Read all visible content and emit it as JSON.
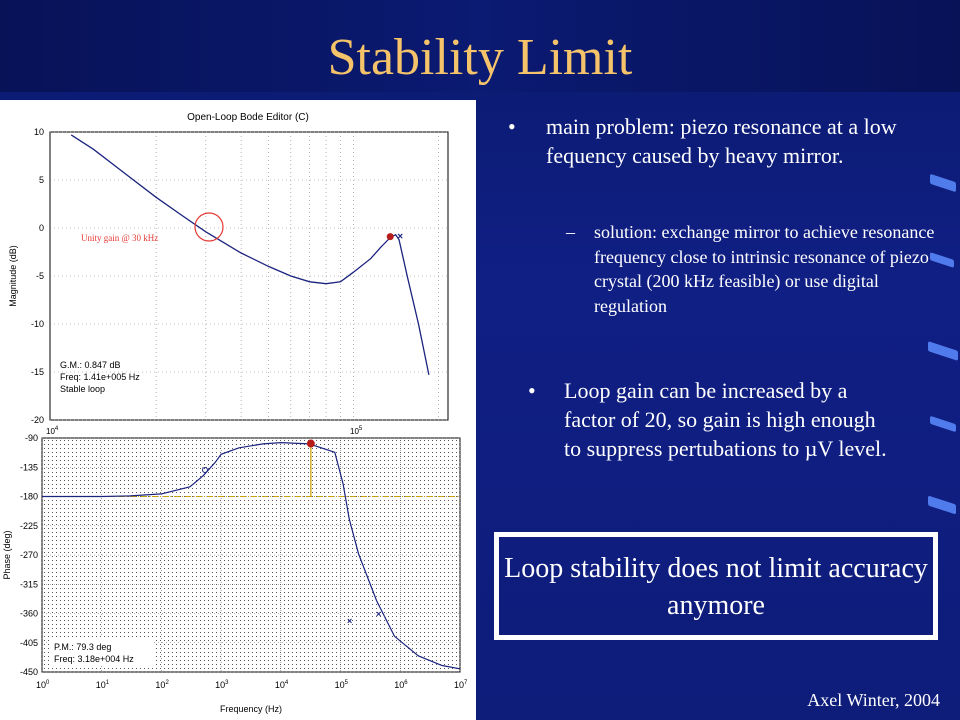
{
  "slide": {
    "title": "Stability Limit",
    "author": "Axel Winter, 2004",
    "bullets": {
      "main": "main problem: piezo resonance at a low fequency caused by heavy mirror.",
      "sub": "solution: exchange mirror to achieve resonance frequency close to intrinsic resonance of piezo crystal (200 kHz feasible) or use digital regulation",
      "loop": "Loop gain can be increased by a factor of 20, so gain is high enough to suppress pertubations to µV level."
    },
    "conclusion": "Loop stability does not limit accuracy anymore",
    "colors": {
      "background": "#0e1c7a",
      "title": "#f5c46a",
      "accent": "#5a8cff"
    }
  },
  "bode": {
    "window_title": "Open-Loop Bode Editor (C)",
    "magnitude": {
      "ylabel": "Magnitude (dB)",
      "y_ticks": [
        "10",
        "5",
        "0",
        "-5",
        "-10",
        "-15",
        "-20"
      ],
      "ylim": [
        -20,
        10
      ],
      "x_ticks": [
        "10",
        "10"
      ],
      "x_exps": [
        "4",
        "5"
      ],
      "annotation": "Unity gain @ 30 kHz",
      "info": [
        "G.M.: 0.847 dB",
        "Freq: 1.41e+005 Hz",
        "Stable loop"
      ],
      "curve_db": [
        [
          10000,
          9.7
        ],
        [
          12000,
          8.2
        ],
        [
          15000,
          6.0
        ],
        [
          20000,
          3.2
        ],
        [
          25000,
          1.2
        ],
        [
          30000,
          -0.4
        ],
        [
          40000,
          -2.6
        ],
        [
          50000,
          -4.0
        ],
        [
          60000,
          -5.0
        ],
        [
          70000,
          -5.6
        ],
        [
          80000,
          -5.8
        ],
        [
          90000,
          -5.6
        ],
        [
          100000,
          -4.6
        ],
        [
          115000,
          -3.2
        ],
        [
          125000,
          -2.0
        ],
        [
          135000,
          -1.0
        ],
        [
          141000,
          -0.7
        ],
        [
          145000,
          -1.2
        ],
        [
          155000,
          -5.0
        ],
        [
          170000,
          -10.0
        ],
        [
          185000,
          -15.3
        ]
      ]
    },
    "phase": {
      "ylabel": "Phase (deg)",
      "xlabel": "Frequency (Hz)",
      "y_ticks": [
        "-90",
        "-135",
        "-180",
        "-225",
        "-270",
        "-315",
        "-360",
        "-405",
        "-450"
      ],
      "ylim": [
        -450,
        -90
      ],
      "x_ticks": [
        "10",
        "10",
        "10",
        "10",
        "10",
        "10",
        "10",
        "10"
      ],
      "x_exps": [
        "0",
        "1",
        "2",
        "3",
        "4",
        "5",
        "6",
        "7"
      ],
      "info": [
        "P.M.: 79.3 deg",
        "Freq: 3.18e+004 Hz"
      ],
      "curve_deg": [
        [
          1,
          -180
        ],
        [
          10,
          -180
        ],
        [
          30,
          -179
        ],
        [
          100,
          -176
        ],
        [
          300,
          -165
        ],
        [
          500,
          -148
        ],
        [
          800,
          -127
        ],
        [
          1000,
          -115
        ],
        [
          2000,
          -105
        ],
        [
          5000,
          -99
        ],
        [
          10000,
          -97
        ],
        [
          30000,
          -99
        ],
        [
          80000,
          -112
        ],
        [
          110000,
          -160
        ],
        [
          140000,
          -215
        ],
        [
          200000,
          -268
        ],
        [
          400000,
          -340
        ],
        [
          800000,
          -395
        ],
        [
          2000000,
          -425
        ],
        [
          5000000,
          -440
        ],
        [
          10000000,
          -445
        ]
      ]
    }
  }
}
